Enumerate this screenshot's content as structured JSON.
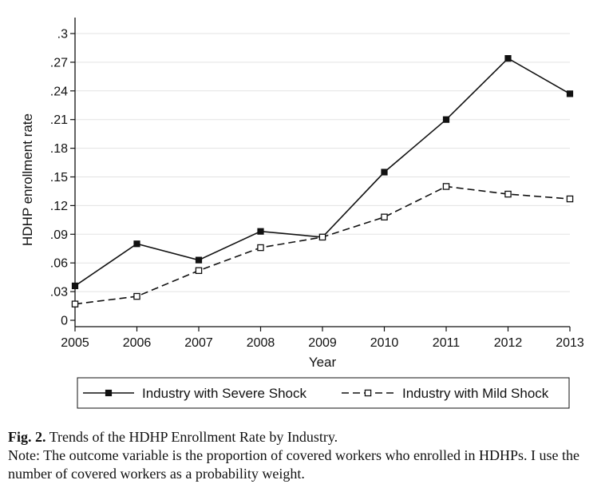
{
  "chart_data": {
    "type": "line",
    "x": [
      2005,
      2006,
      2007,
      2008,
      2009,
      2010,
      2011,
      2012,
      2013
    ],
    "series": [
      {
        "name": "Industry with Severe Shock",
        "values": [
          0.036,
          0.08,
          0.063,
          0.093,
          0.087,
          0.155,
          0.21,
          0.274,
          0.237
        ],
        "style": "solid",
        "marker": "filled-square",
        "color": "#111111"
      },
      {
        "name": "Industry with Mild Shock",
        "values": [
          0.017,
          0.025,
          0.052,
          0.076,
          0.087,
          0.108,
          0.14,
          0.132,
          0.127
        ],
        "style": "dashed",
        "marker": "hollow-square",
        "color": "#111111"
      }
    ],
    "xlabel": "Year",
    "ylabel": "HDHP enrollment rate",
    "xlim": [
      2005,
      2013
    ],
    "ylim": [
      0,
      0.3
    ],
    "y_ticks": [
      0,
      0.03,
      0.06,
      0.09,
      0.12,
      0.15,
      0.18,
      0.21,
      0.24,
      0.27,
      0.3
    ],
    "y_tick_labels": [
      "0",
      ".03",
      ".06",
      ".09",
      ".12",
      ".15",
      ".18",
      ".21",
      ".24",
      ".27",
      ".3"
    ],
    "x_tick_labels": [
      "2005",
      "2006",
      "2007",
      "2008",
      "2009",
      "2010",
      "2011",
      "2012",
      "2013"
    ],
    "grid": "horizontal",
    "legend_placement": "bottom"
  },
  "caption": {
    "label": "Fig. 2.",
    "title": "Trends of the HDHP Enrollment Rate by Industry.",
    "note": "Note: The outcome variable is the proportion of covered workers who enrolled in HDHPs. I use the number of covered workers as a probability weight."
  }
}
